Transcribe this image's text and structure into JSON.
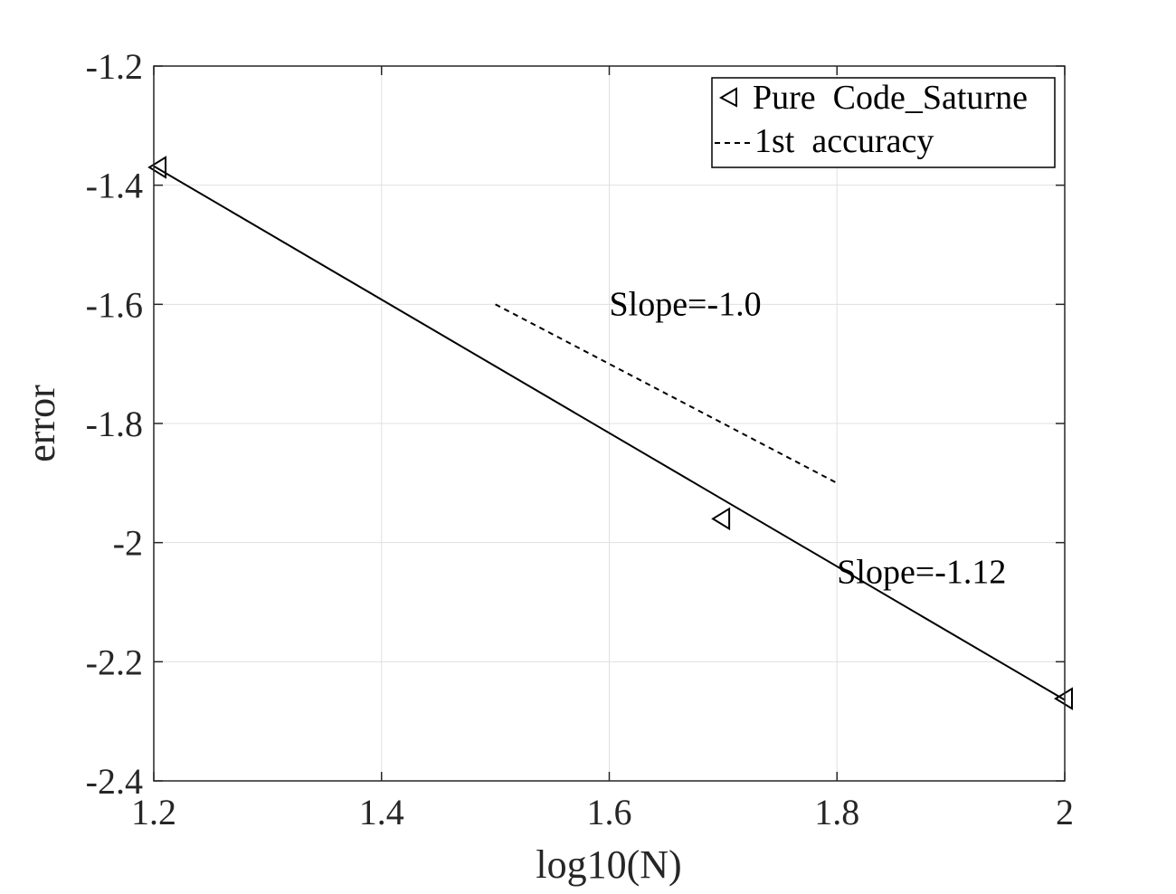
{
  "chart_data": {
    "type": "line",
    "title": "",
    "xlabel": "log10(N)",
    "ylabel": "error",
    "xlim": [
      1.2,
      2.0
    ],
    "ylim": [
      -2.4,
      -1.2
    ],
    "xticks": [
      1.2,
      1.4,
      1.6,
      1.8,
      2.0
    ],
    "xtick_labels": [
      "1.2",
      "1.4",
      "1.6",
      "1.8",
      "2"
    ],
    "yticks": [
      -2.4,
      -2.2,
      -2.0,
      -1.8,
      -1.6,
      -1.4,
      -1.2
    ],
    "ytick_labels": [
      "-2.4",
      "-2.2",
      "-2",
      "-1.8",
      "-1.6",
      "-1.4",
      "-1.2"
    ],
    "grid": true,
    "legend_position": "top-right",
    "series": [
      {
        "name": "Pure  Code_Saturne",
        "style": "markers",
        "marker": "triangle-left",
        "x": [
          1.204,
          1.699,
          2.0
        ],
        "y": [
          -1.37,
          -1.96,
          -2.262
        ]
      },
      {
        "name": "fit",
        "style": "solid",
        "legend": false,
        "x": [
          1.2,
          2.0
        ],
        "y": [
          -1.368,
          -2.264
        ]
      },
      {
        "name": "---1st  accuracy",
        "style": "dashed",
        "x": [
          1.5,
          1.8
        ],
        "y": [
          -1.6,
          -1.9
        ]
      }
    ],
    "annotations": [
      {
        "text": "Slope=-1.0",
        "x": 1.6,
        "y": -1.6
      },
      {
        "text": "Slope=-1.12",
        "x": 1.8,
        "y": -2.05
      }
    ],
    "legend": {
      "marker_entry": "Pure  Code_Saturne",
      "line_entry": "1st  accuracy"
    },
    "colors": {
      "line": "#000000",
      "grid": "#e0e0e0",
      "axis": "#262626"
    }
  }
}
